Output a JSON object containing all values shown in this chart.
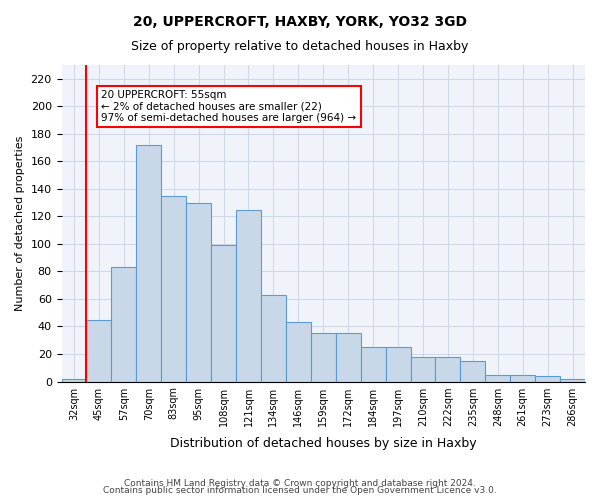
{
  "title1": "20, UPPERCROFT, HAXBY, YORK, YO32 3GD",
  "title2": "Size of property relative to detached houses in Haxby",
  "xlabel": "Distribution of detached houses by size in Haxby",
  "ylabel": "Number of detached properties",
  "categories": [
    "32sqm",
    "45sqm",
    "57sqm",
    "70sqm",
    "83sqm",
    "95sqm",
    "108sqm",
    "121sqm",
    "134sqm",
    "146sqm",
    "159sqm",
    "172sqm",
    "184sqm",
    "197sqm",
    "210sqm",
    "222sqm",
    "235sqm",
    "248sqm",
    "261sqm",
    "273sqm",
    "286sqm"
  ],
  "values": [
    2,
    45,
    83,
    172,
    135,
    130,
    99,
    125,
    63,
    43,
    35,
    35,
    25,
    25,
    18,
    18,
    15,
    5,
    5,
    4,
    2
  ],
  "bar_color": "#c8d8e8",
  "bar_edge_color": "#5b9bd5",
  "annotation_text": "20 UPPERCROFT: 55sqm\n← 2% of detached houses are smaller (22)\n97% of semi-detached houses are larger (964) →",
  "annotation_box_color": "white",
  "annotation_box_edge": "red",
  "vline_color": "red",
  "vline_x_idx": 1,
  "footer1": "Contains HM Land Registry data © Crown copyright and database right 2024.",
  "footer2": "Contains public sector information licensed under the Open Government Licence v3.0.",
  "ylim": [
    0,
    230
  ],
  "yticks": [
    0,
    20,
    40,
    60,
    80,
    100,
    120,
    140,
    160,
    180,
    200,
    220
  ],
  "grid_color": "#d0d8e8",
  "background_color": "#f0f4fa"
}
